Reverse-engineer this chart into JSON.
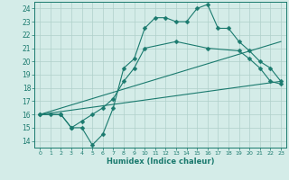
{
  "line1_x": [
    0,
    1,
    2,
    3,
    4,
    5,
    6,
    7,
    8,
    9,
    10,
    11,
    12,
    13,
    14,
    15,
    16,
    17,
    18,
    19,
    20,
    21,
    22,
    23
  ],
  "line1_y": [
    16,
    16,
    16,
    15,
    15,
    13.7,
    14.5,
    16.5,
    19.5,
    20.2,
    22.5,
    23.3,
    23.3,
    23.0,
    23.0,
    24.0,
    24.3,
    22.5,
    22.5,
    21.5,
    20.8,
    20.0,
    19.5,
    18.5
  ],
  "line2_x": [
    0,
    2,
    3,
    4,
    5,
    6,
    7,
    8,
    9,
    10,
    13,
    16,
    19,
    20,
    21,
    22,
    23
  ],
  "line2_y": [
    16,
    16,
    15,
    15.5,
    16,
    16.5,
    17.2,
    18.5,
    19.5,
    21.0,
    21.5,
    21.0,
    20.8,
    20.2,
    19.5,
    18.5,
    18.3
  ],
  "line3_x": [
    0,
    23
  ],
  "line3_y": [
    16,
    21.5
  ],
  "line4_x": [
    0,
    23
  ],
  "line4_y": [
    16,
    18.5
  ],
  "color": "#1a7a6e",
  "bg_color": "#d4ece8",
  "grid_color": "#b0d0ca",
  "xlabel": "Humidex (Indice chaleur)",
  "xlim": [
    -0.5,
    23.5
  ],
  "ylim": [
    13.5,
    24.5
  ],
  "yticks": [
    14,
    15,
    16,
    17,
    18,
    19,
    20,
    21,
    22,
    23,
    24
  ],
  "xticks": [
    0,
    1,
    2,
    3,
    4,
    5,
    6,
    7,
    8,
    9,
    10,
    11,
    12,
    13,
    14,
    15,
    16,
    17,
    18,
    19,
    20,
    21,
    22,
    23
  ]
}
